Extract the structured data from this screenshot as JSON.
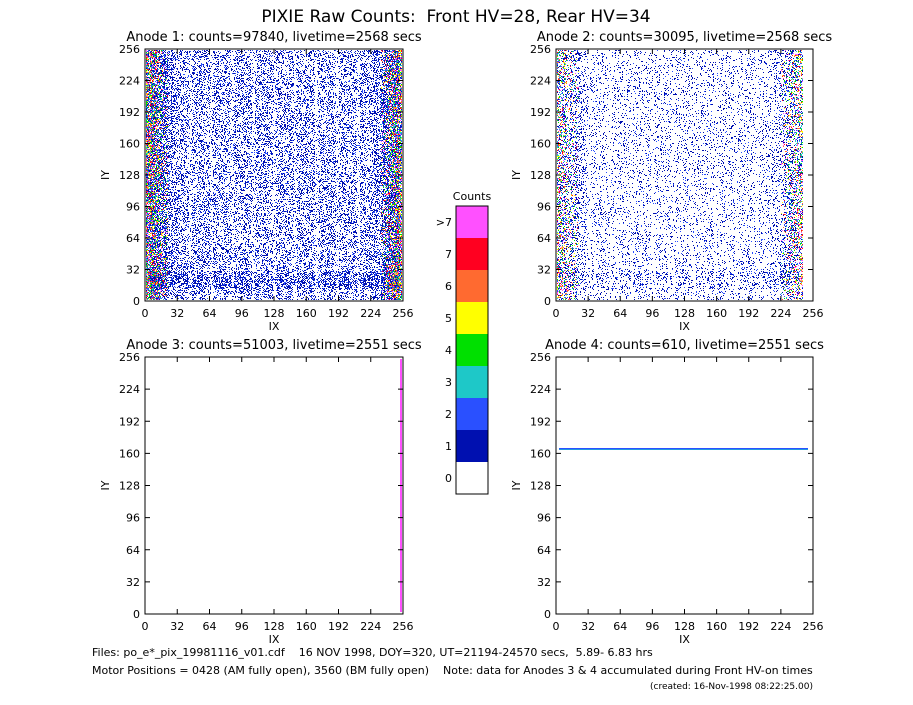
{
  "title": "PIXIE Raw Counts:  Front HV=28, Rear HV=34",
  "chart_data": [
    {
      "type": "heatmap",
      "title": "Anode 1: counts=97840, livetime=2568 secs",
      "xlabel": "IX",
      "ylabel": "IY",
      "xlim": [
        0,
        256
      ],
      "ylim": [
        0,
        256
      ],
      "xticks": [
        0,
        32,
        64,
        96,
        128,
        160,
        192,
        224,
        256
      ],
      "yticks": [
        0,
        32,
        64,
        96,
        128,
        160,
        192,
        224,
        256
      ]
    },
    {
      "type": "heatmap",
      "title": "Anode 2: counts=30095, livetime=2568 secs",
      "xlabel": "IX",
      "ylabel": "IY",
      "xlim": [
        0,
        256
      ],
      "ylim": [
        0,
        256
      ],
      "xticks": [
        0,
        32,
        64,
        96,
        128,
        160,
        192,
        224,
        256
      ],
      "yticks": [
        0,
        32,
        64,
        96,
        128,
        160,
        192,
        224,
        256
      ]
    },
    {
      "type": "heatmap",
      "title": "Anode 3: counts=51003, livetime=2551 secs",
      "xlabel": "IX",
      "ylabel": "IY",
      "xlim": [
        0,
        256
      ],
      "ylim": [
        0,
        256
      ],
      "xticks": [
        0,
        32,
        64,
        96,
        128,
        160,
        192,
        224,
        256
      ],
      "yticks": [
        0,
        32,
        64,
        96,
        128,
        160,
        192,
        224,
        256
      ]
    },
    {
      "type": "heatmap",
      "title": "Anode 4: counts=610, livetime=2551 secs",
      "xlabel": "IX",
      "ylabel": "IY",
      "xlim": [
        0,
        256
      ],
      "ylim": [
        0,
        256
      ],
      "xticks": [
        0,
        32,
        64,
        96,
        128,
        160,
        192,
        224,
        256
      ],
      "yticks": [
        0,
        32,
        64,
        96,
        128,
        160,
        192,
        224,
        256
      ]
    },
    {
      "type": "colorbar",
      "title": "Counts",
      "ticks": [
        0,
        1,
        2,
        3,
        4,
        5,
        6,
        7,
        {
          "value": 8,
          "label": ">7"
        }
      ],
      "colors": [
        "#ffffff",
        "#0010b0",
        "#2a50ff",
        "#1ec8c8",
        "#00e000",
        "#ffff00",
        "#ff6a30",
        "#ff0020",
        "#ff50ff"
      ]
    }
  ],
  "footer": [
    "Files: po_e*_pix_19981116_v01.cdf    16 NOV 1998, DOY=320, UT=21194-24570 secs,  5.89- 6.83 hrs",
    "Motor Positions = 0428 (AM fully open), 3560 (BM fully open)    Note: data for Anodes 3 & 4 accumulated during Front HV-on times",
    "(created: 16-Nov-1998 08:22:25.00)"
  ]
}
